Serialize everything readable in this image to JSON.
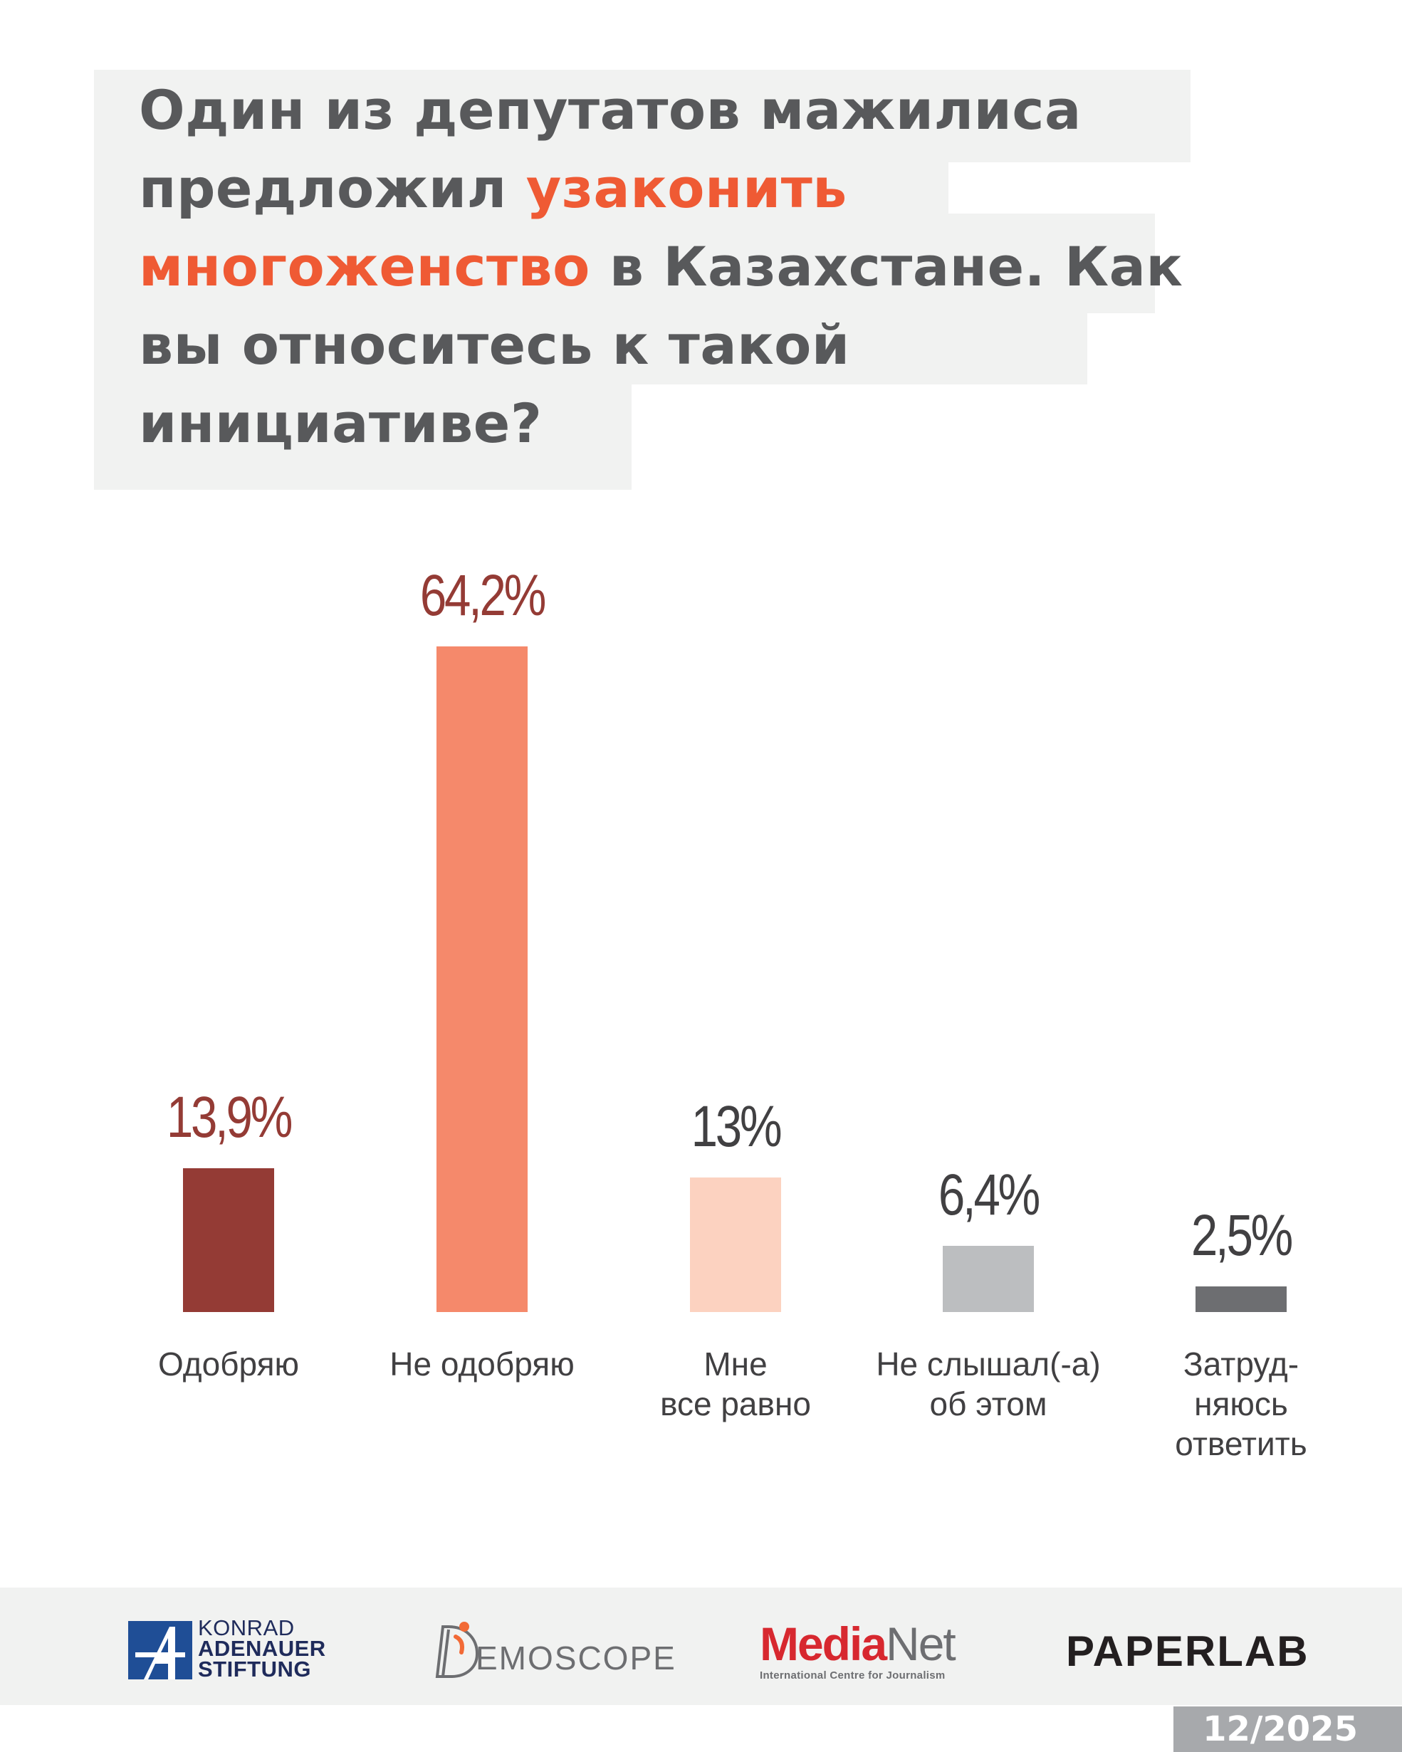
{
  "title": {
    "part1": "Один из депутатов мажилиса предложил ",
    "highlight": "узаконить многоженство",
    "part2": " в Казахстане. Как вы относитесь к такой инициативе?",
    "highlight_color": "#ef5a34",
    "text_color": "#58595b",
    "background_color": "#f1f2f1"
  },
  "chart_data": {
    "type": "bar",
    "categories": [
      "Одобряю",
      "Не одобряю",
      "Мне\nвсе равно",
      "Не слышал(-а)\nоб этом",
      "Затруд-\nняюсь\nответить"
    ],
    "values": [
      13.9,
      64.2,
      13,
      6.4,
      2.5
    ],
    "value_labels": [
      "13,9%",
      "64,2%",
      "13%",
      "6,4%",
      "2,5%"
    ],
    "bar_colors": [
      "#943b35",
      "#f5896b",
      "#fcd2c0",
      "#bcbec0",
      "#6d6e71"
    ],
    "value_label_colors": [
      "#943b35",
      "#943b35",
      "#414042",
      "#414042",
      "#414042"
    ],
    "ylim": [
      0,
      64.2
    ],
    "grid": false,
    "legend": "none"
  },
  "footer": {
    "logos": {
      "kas": {
        "line1": "KONRAD",
        "line2": "ADENAUER",
        "line3": "STIFTUNG"
      },
      "demoscope": {
        "text": "EMOSCOPE"
      },
      "medianet": {
        "part1": "Media",
        "part2": "Net",
        "subtitle": "International Centre for Journalism"
      },
      "paperlab": {
        "text": "PAPERLAB"
      }
    },
    "date": "12/2025"
  }
}
